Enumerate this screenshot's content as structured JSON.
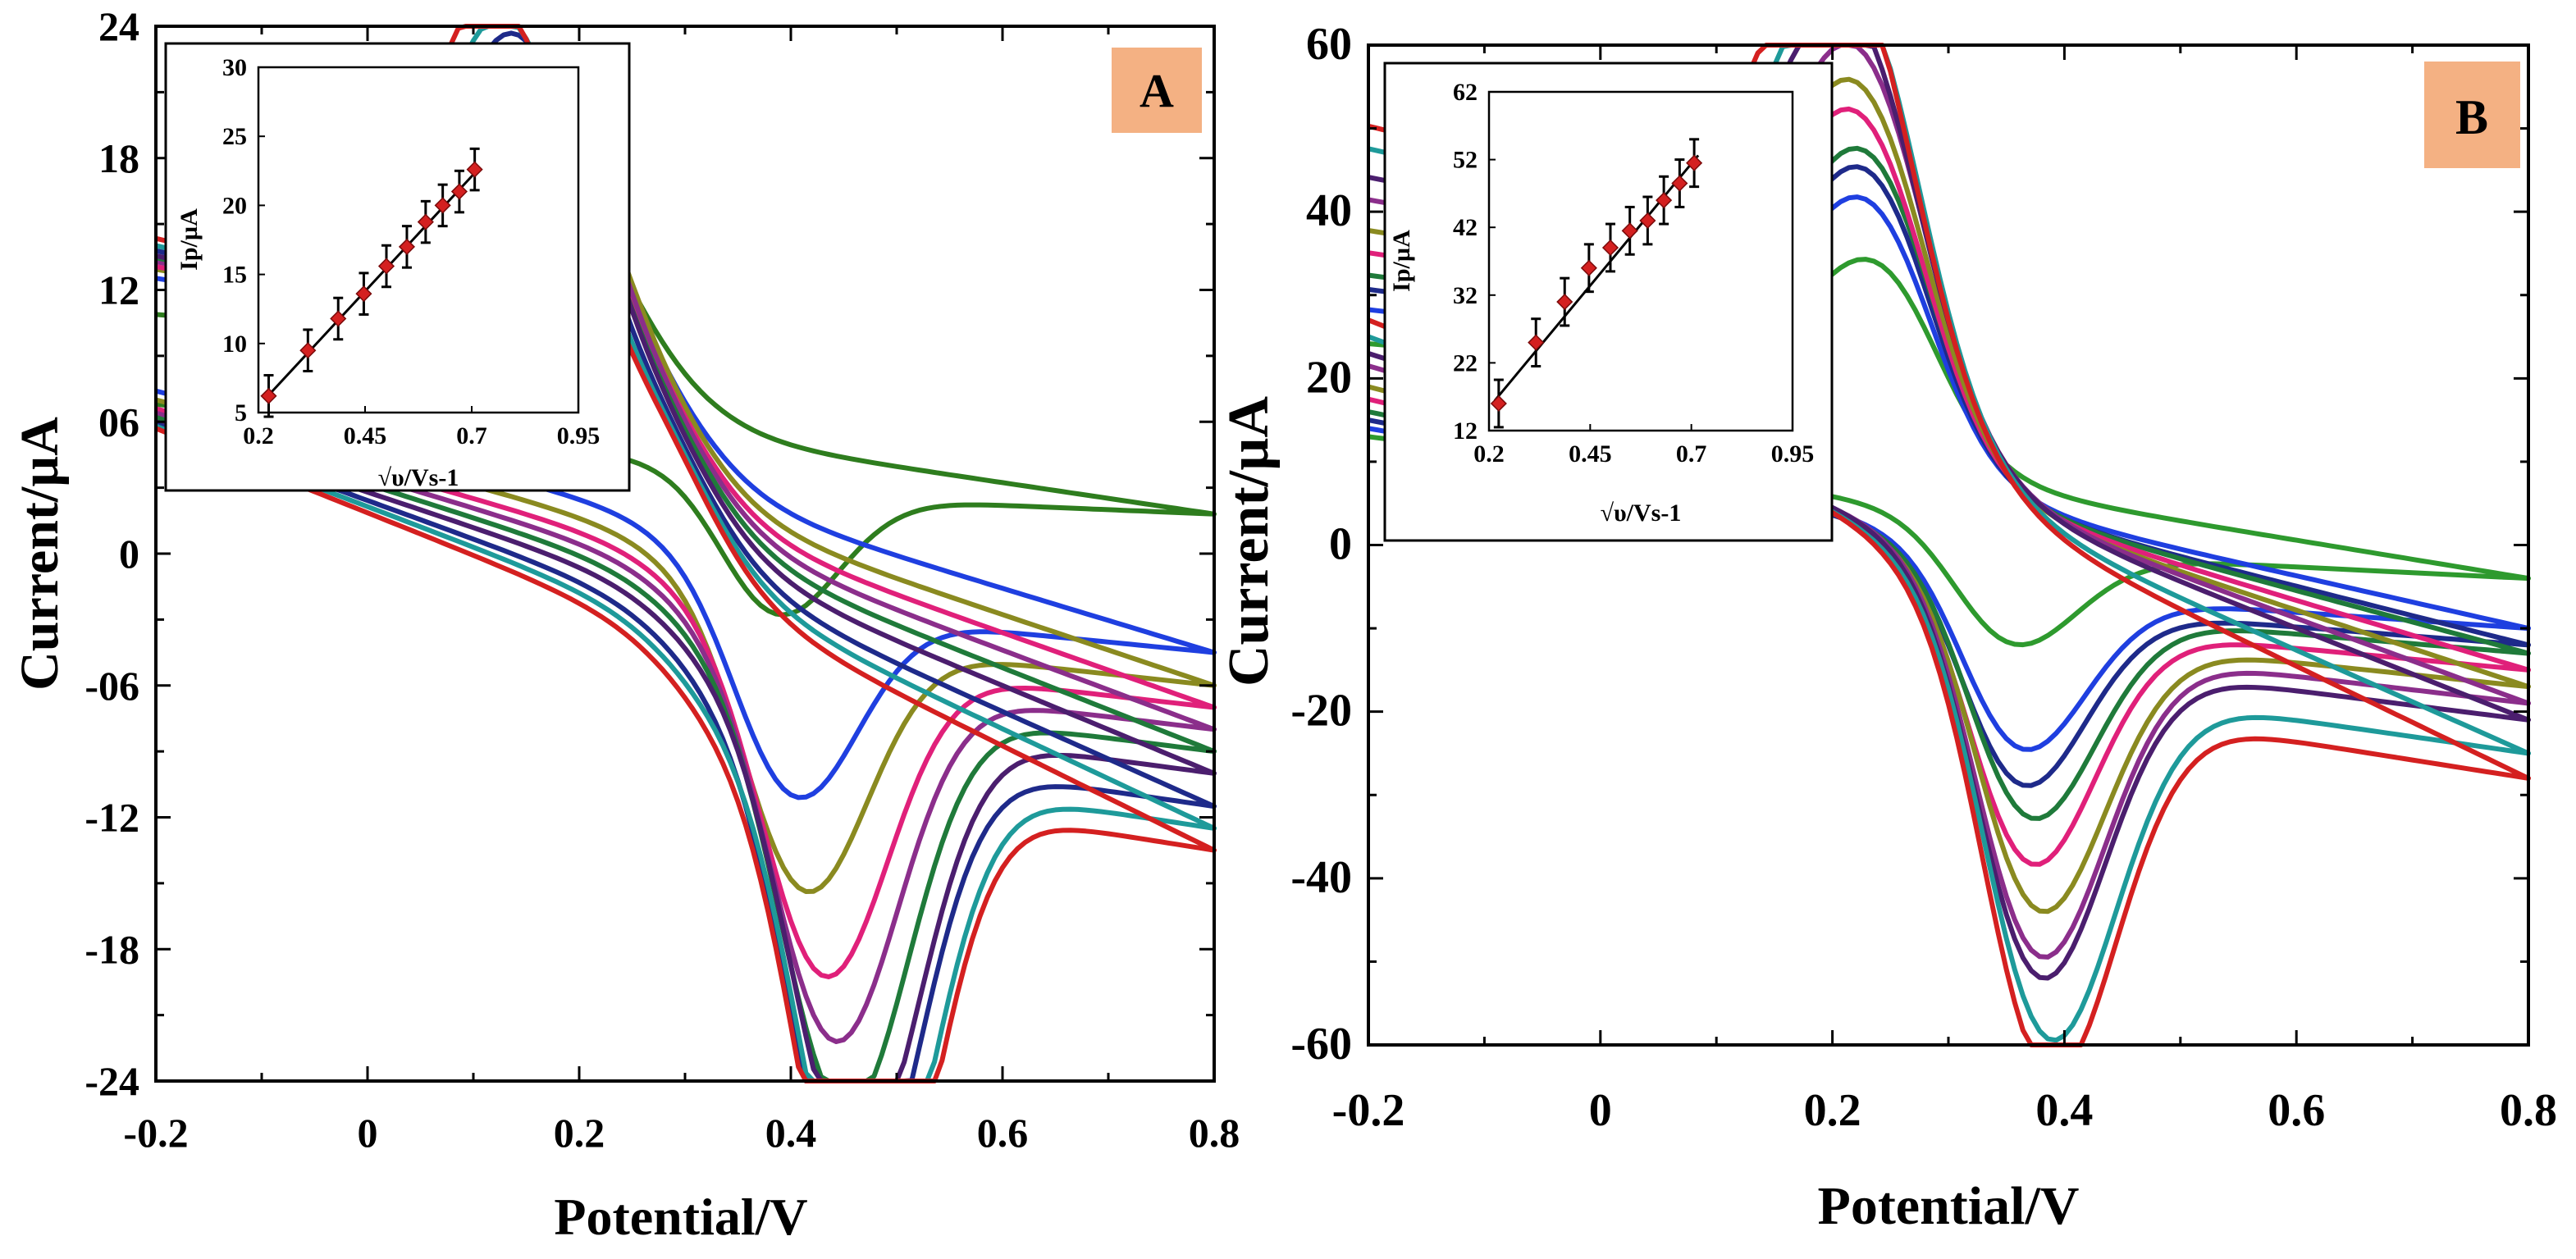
{
  "chart_data": [
    {
      "type": "line",
      "panel_label": "A",
      "xlabel": "Potential/V",
      "ylabel": "Current/µA",
      "xlim": [
        -0.2,
        0.8
      ],
      "ylim": [
        24,
        -24
      ],
      "x_ticks": [
        -0.2,
        0,
        0.2,
        0.4,
        0.6,
        0.8
      ],
      "x_tick_labels": [
        "-0.2",
        "0",
        "0.2",
        "0.4",
        "0.6",
        "0.8"
      ],
      "y_ticks": [
        -24,
        -18,
        -12,
        -6,
        0,
        6,
        12,
        18,
        24
      ],
      "y_tick_labels": [
        "-24",
        "-18",
        "-12",
        "-06",
        "0",
        "06",
        "12",
        "18",
        "24"
      ],
      "grid": false,
      "cv_params": {
        "e0": 0.31,
        "start_fwd": 5.5,
        "end_fwd_delta": -2.0,
        "start_rev_delta": 0.8
      },
      "series": [
        {
          "color": "#2E7D1E",
          "ipa": -7.0,
          "ipc": 8.6,
          "epa": 0.38,
          "epc": 0.18,
          "start": 6.8,
          "end": 1.8
        },
        {
          "color": "#1F3FE0",
          "ipa": -10.5,
          "ipc": 10.8,
          "epa": 0.4,
          "epc": 0.17,
          "start": 7.4,
          "end": -4.5
        },
        {
          "color": "#8A8A20",
          "ipa": -13.8,
          "ipc": 12.5,
          "epa": 0.41,
          "epc": 0.17,
          "start": 7.0,
          "end": -6.0
        },
        {
          "color": "#E0207A",
          "ipa": -16.8,
          "ipc": 13.6,
          "epa": 0.43,
          "epc": 0.16,
          "start": 6.6,
          "end": -7.0
        },
        {
          "color": "#8B2E8B",
          "ipa": -19.0,
          "ipc": 14.5,
          "epa": 0.44,
          "epc": 0.16,
          "start": 6.4,
          "end": -8.0
        },
        {
          "color": "#1F7A3A",
          "ipa": -21.5,
          "ipc": 15.3,
          "epa": 0.45,
          "epc": 0.15,
          "start": 6.2,
          "end": -9.0
        },
        {
          "color": "#4B1E6E",
          "ipa": -23.3,
          "ipc": 15.9,
          "epa": 0.46,
          "epc": 0.15,
          "start": 6.0,
          "end": -10.0
        },
        {
          "color": "#1E2A8A",
          "ipa": -24.8,
          "ipc": 16.6,
          "epa": 0.46,
          "epc": 0.14,
          "start": 5.9,
          "end": -11.5
        },
        {
          "color": "#1E9A9A",
          "ipa": -26.0,
          "ipc": 17.3,
          "epa": 0.47,
          "epc": 0.13,
          "start": 5.8,
          "end": -12.5
        },
        {
          "color": "#D42020",
          "ipa": -27.4,
          "ipc": 18.2,
          "epa": 0.47,
          "epc": 0.12,
          "start": 5.7,
          "end": -13.5
        }
      ],
      "inset": {
        "type": "scatter",
        "xlabel": "√υ/Vs-1",
        "ylabel": "Ip/µA",
        "xlim": [
          0.2,
          0.95
        ],
        "ylim": [
          5,
          30
        ],
        "x_ticks": [
          0.2,
          0.45,
          0.7,
          0.95
        ],
        "x_tick_labels": [
          "0.2",
          "0.45",
          "0.7",
          "0.95"
        ],
        "y_ticks": [
          5,
          10,
          15,
          20,
          25,
          30
        ],
        "y_tick_labels": [
          "5",
          "10",
          "15",
          "20",
          "25",
          "30"
        ],
        "x": [
          0.224,
          0.316,
          0.387,
          0.447,
          0.5,
          0.548,
          0.592,
          0.632,
          0.671,
          0.707
        ],
        "y": [
          6.2,
          9.5,
          11.8,
          13.6,
          15.6,
          17.0,
          18.8,
          20.0,
          21.0,
          22.6
        ],
        "error": 1.5,
        "fit": {
          "slope": 33.3,
          "intercept": -1.2
        }
      }
    },
    {
      "type": "line",
      "panel_label": "B",
      "xlabel": "Potential/V",
      "ylabel": "Current/µA",
      "xlim": [
        -0.2,
        0.8
      ],
      "ylim": [
        60,
        -60
      ],
      "x_ticks": [
        -0.2,
        0,
        0.2,
        0.4,
        0.6,
        0.8
      ],
      "x_tick_labels": [
        "-0.2",
        "0",
        "0.2",
        "0.4",
        "0.6",
        "0.8"
      ],
      "y_ticks": [
        -60,
        -40,
        -20,
        0,
        20,
        40,
        60
      ],
      "y_tick_labels": [
        "-60",
        "-40",
        "-20",
        "0",
        "20",
        "40",
        "60"
      ],
      "grid": false,
      "cv_params": {
        "e0": 0.3,
        "start_fwd": 11.0,
        "end_fwd_delta": -6.0,
        "start_rev_delta": 2.0
      },
      "series": [
        {
          "color": "#2E9A2E",
          "ipa": -16.5,
          "ipc": 23.5,
          "epa": 0.34,
          "epc": 0.25,
          "start": 13.0,
          "end": -4.0
        },
        {
          "color": "#1F3FE0",
          "ipa": -26.5,
          "ipc": 30.0,
          "epa": 0.35,
          "epc": 0.24,
          "start": 14.0,
          "end": -10.0
        },
        {
          "color": "#1E2A8A",
          "ipa": -30.5,
          "ipc": 33.0,
          "epa": 0.35,
          "epc": 0.24,
          "start": 15.0,
          "end": -12.0
        },
        {
          "color": "#1F7A3A",
          "ipa": -33.5,
          "ipc": 34.5,
          "epa": 0.36,
          "epc": 0.24,
          "start": 16.0,
          "end": -13.0
        },
        {
          "color": "#E0207A",
          "ipa": -39.0,
          "ipc": 37.0,
          "epa": 0.36,
          "epc": 0.23,
          "start": 17.5,
          "end": -15.0
        },
        {
          "color": "#8A8A20",
          "ipa": -43.0,
          "ipc": 39.5,
          "epa": 0.37,
          "epc": 0.23,
          "start": 19.0,
          "end": -17.0
        },
        {
          "color": "#8B2E8B",
          "ipa": -48.5,
          "ipc": 42.0,
          "epa": 0.37,
          "epc": 0.23,
          "start": 21.5,
          "end": -19.0
        },
        {
          "color": "#4B1E6E",
          "ipa": -50.0,
          "ipc": 44.5,
          "epa": 0.37,
          "epc": 0.22,
          "start": 23.0,
          "end": -21.0
        },
        {
          "color": "#1E9A9A",
          "ipa": -54.0,
          "ipc": 47.5,
          "epa": 0.38,
          "epc": 0.22,
          "start": 25.0,
          "end": -25.0
        },
        {
          "color": "#D42020",
          "ipa": -57.0,
          "ipc": 49.0,
          "epa": 0.38,
          "epc": 0.21,
          "start": 27.0,
          "end": -28.0
        }
      ],
      "inset": {
        "type": "scatter",
        "xlabel": "√υ/Vs-1",
        "ylabel": "Ip/µA",
        "xlim": [
          0.2,
          0.95
        ],
        "ylim": [
          12,
          62
        ],
        "x_ticks": [
          0.2,
          0.45,
          0.7,
          0.95
        ],
        "x_tick_labels": [
          "0.2",
          "0.45",
          "0.7",
          "0.95"
        ],
        "y_ticks": [
          12,
          22,
          32,
          42,
          52,
          62
        ],
        "y_tick_labels": [
          "12",
          "22",
          "32",
          "42",
          "52",
          "62"
        ],
        "x": [
          0.224,
          0.316,
          0.387,
          0.447,
          0.5,
          0.548,
          0.592,
          0.632,
          0.671,
          0.707
        ],
        "y": [
          16.0,
          25.0,
          31.0,
          36.0,
          39.0,
          41.5,
          43.0,
          46.0,
          48.5,
          51.5
        ],
        "error": 3.5,
        "fit": {
          "slope": 72.0,
          "intercept": 1.0
        }
      }
    }
  ]
}
